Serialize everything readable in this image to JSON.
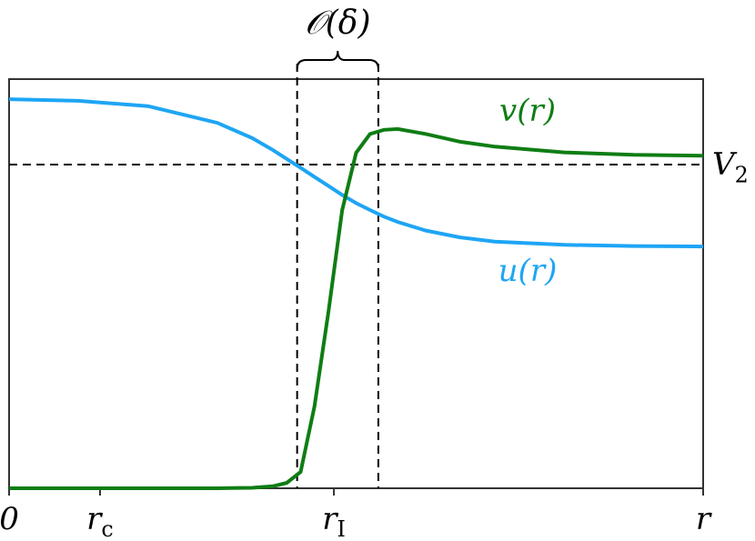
{
  "chart_data": {
    "type": "line",
    "x": [
      0,
      0.1,
      0.2,
      0.3,
      0.35,
      0.38,
      0.4,
      0.42,
      0.44,
      0.46,
      0.48,
      0.5,
      0.52,
      0.54,
      0.56,
      0.6,
      0.65,
      0.7,
      0.8,
      0.9,
      1.0
    ],
    "series": [
      {
        "name": "u",
        "label": "u(r)",
        "color": "#1ea5f5",
        "values": [
          0.951,
          0.947,
          0.934,
          0.893,
          0.856,
          0.827,
          0.805,
          0.783,
          0.761,
          0.739,
          0.717,
          0.697,
          0.68,
          0.664,
          0.651,
          0.63,
          0.613,
          0.603,
          0.595,
          0.592,
          0.591
        ]
      },
      {
        "name": "v",
        "label": "v(r)",
        "color": "#0f7d14",
        "values": [
          0,
          0,
          0,
          0,
          0.001,
          0.005,
          0.013,
          0.04,
          0.2,
          0.43,
          0.68,
          0.82,
          0.866,
          0.876,
          0.878,
          0.866,
          0.847,
          0.835,
          0.821,
          0.815,
          0.813
        ]
      }
    ],
    "xlim": [
      0,
      1
    ],
    "ylim": [
      0,
      1
    ],
    "xticks": [
      {
        "value": 0,
        "label": "0"
      },
      {
        "value": 0.131,
        "label": "r",
        "sub": "c"
      },
      {
        "value": 0.468,
        "label": "r",
        "sub": "I"
      },
      {
        "value": 1.0,
        "label": "r"
      }
    ],
    "hline": {
      "value": 0.791,
      "label": "V",
      "sub": "2"
    },
    "vlines": [
      0.415,
      0.532
    ],
    "span_label": "𝒪(δ)"
  }
}
